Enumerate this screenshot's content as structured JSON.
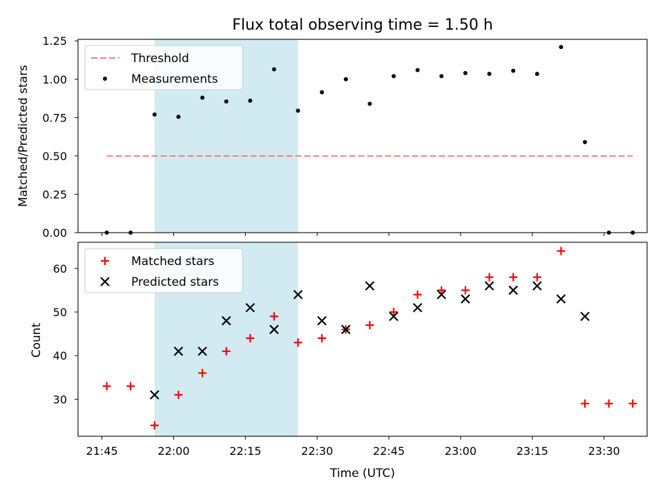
{
  "chart_data": {
    "type": "scatter",
    "title": "Flux total observing time = 1.50 h",
    "xlabel": "Time (UTC)",
    "x_tick_labels": [
      "21:45",
      "22:00",
      "22:15",
      "22:30",
      "22:45",
      "23:00",
      "23:15",
      "23:30"
    ],
    "x_tick_minutes": [
      1305,
      1320,
      1335,
      1350,
      1365,
      1380,
      1395,
      1410
    ],
    "shaded_interval": [
      "21:56",
      "22:26"
    ],
    "shaded_color": "#add8e6",
    "panels": [
      {
        "ylabel": "Matched/Predicted stars",
        "ylim": [
          0.0,
          1.26
        ],
        "y_ticks": [
          "0.00",
          "0.25",
          "0.50",
          "0.75",
          "1.00",
          "1.25"
        ],
        "legend_position": "upper-left",
        "threshold": {
          "name": "Threshold",
          "value": 0.5,
          "x_range": [
            "21:46",
            "23:36"
          ],
          "color": "#f08080"
        },
        "series": [
          {
            "name": "Measurements",
            "marker": "dot",
            "color": "#000000",
            "x": [
              "21:46",
              "21:51",
              "21:56",
              "22:01",
              "22:06",
              "22:11",
              "22:16",
              "22:21",
              "22:26",
              "22:31",
              "22:36",
              "22:41",
              "22:46",
              "22:51",
              "22:56",
              "23:01",
              "23:06",
              "23:11",
              "23:16",
              "23:21",
              "23:26",
              "23:31",
              "23:36"
            ],
            "y": [
              0.0,
              0.0,
              0.77,
              0.755,
              0.88,
              0.855,
              0.86,
              1.065,
              0.795,
              0.915,
              1.0,
              0.84,
              1.02,
              1.06,
              1.02,
              1.04,
              1.035,
              1.055,
              1.035,
              1.21,
              0.59,
              0.0,
              0.0
            ]
          }
        ]
      },
      {
        "ylabel": "Count",
        "ylim": [
          21.5,
          66
        ],
        "y_ticks": [
          "30",
          "40",
          "50",
          "60"
        ],
        "legend_position": "upper-left",
        "series": [
          {
            "name": "Matched stars",
            "marker": "plus",
            "color": "#ff0000",
            "x": [
              "21:46",
              "21:51",
              "21:56",
              "22:01",
              "22:06",
              "22:11",
              "22:16",
              "22:21",
              "22:26",
              "22:31",
              "22:36",
              "22:41",
              "22:46",
              "22:51",
              "22:56",
              "23:01",
              "23:06",
              "23:11",
              "23:16",
              "23:21",
              "23:26",
              "23:31",
              "23:36"
            ],
            "y": [
              33,
              33,
              24,
              31,
              36,
              41,
              44,
              49,
              43,
              44,
              46,
              47,
              50,
              54,
              55,
              55,
              58,
              58,
              58,
              64,
              29,
              29,
              29
            ]
          },
          {
            "name": "Predicted stars",
            "marker": "x",
            "color": "#000000",
            "x": [
              "21:56",
              "22:01",
              "22:06",
              "22:11",
              "22:16",
              "22:21",
              "22:26",
              "22:31",
              "22:36",
              "22:41",
              "22:46",
              "22:51",
              "22:56",
              "23:01",
              "23:06",
              "23:11",
              "23:16",
              "23:21",
              "23:26"
            ],
            "y": [
              31,
              41,
              41,
              48,
              51,
              46,
              54,
              48,
              46,
              56,
              49,
              51,
              54,
              53,
              56,
              55,
              56,
              53,
              49
            ]
          }
        ]
      }
    ]
  }
}
